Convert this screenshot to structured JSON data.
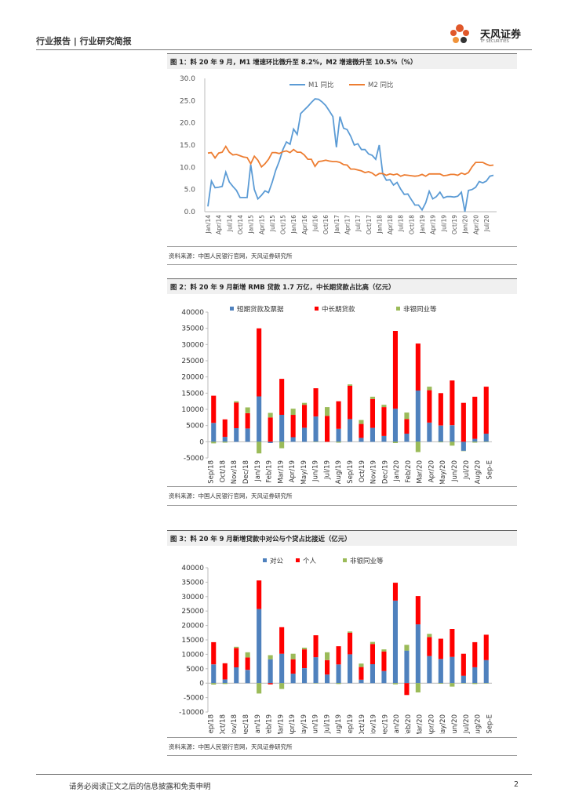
{
  "header": {
    "left_text": "行业报告 | 行业研究简报",
    "brand_name": "天风证券",
    "brand_sub": "TF SECURITIES"
  },
  "figures": [
    {
      "caption": "图 1：料 20 年 9 月，M1 增速环比微升至 8.2%，M2 增速微升至 10.5%（%）",
      "source": "资料来源：中国人民银行官网，天风证券研究所"
    },
    {
      "caption": "图 2：料 20 年 9 月新增 RMB 贷款 1.7 万亿，中长期贷款占比高（亿元）",
      "source": "资料来源：中国人民银行官网，天风证券研究所"
    },
    {
      "caption": "图 3：料 20 年 9 月新增贷款中对公与个贷占比接近（亿元）",
      "source": "资料来源：中国人民银行官网，天风证券研究所"
    }
  ],
  "footer": {
    "note": "请务必阅读正文之后的信息披露和免责申明",
    "page": "2"
  },
  "colors": {
    "blue": "#5B9BD5",
    "orange": "#ED7D31",
    "red": "#FF0000",
    "green": "#9BBB59",
    "barblue": "#4F81BD"
  },
  "chart_data": [
    {
      "type": "line",
      "title": "图 1",
      "ylim": [
        0,
        30
      ],
      "yticks": [
        "0.0",
        "5.0",
        "10.0",
        "15.0",
        "20.0",
        "25.0",
        "30.0"
      ],
      "xticklabels": [
        "Jan/14",
        "Apr/14",
        "Jul/14",
        "Oct/14",
        "Jan/15",
        "Apr/15",
        "Jul/15",
        "Oct/15",
        "Jan/16",
        "Apr/16",
        "Jul/16",
        "Oct/16",
        "Jan/17",
        "Apr/17",
        "Jul/17",
        "Oct/17",
        "Jan/18",
        "Apr/18",
        "Jul/18",
        "Oct/18",
        "Jan/19",
        "Apr/19",
        "Jul/19",
        "Oct/19",
        "Jan/20",
        "Apr/20",
        "Jul/20"
      ],
      "series": [
        {
          "name": "M1 同比",
          "values": [
            1.2,
            6.9,
            5.4,
            5.5,
            5.7,
            8.9,
            6.7,
            5.7,
            4.8,
            3.2,
            3.2,
            3.2,
            10.6,
            5.0,
            2.9,
            3.7,
            4.7,
            4.3,
            6.6,
            9.3,
            11.4,
            14.0,
            15.7,
            15.2,
            18.6,
            17.4,
            22.1,
            22.9,
            23.7,
            24.6,
            25.4,
            25.3,
            24.7,
            23.9,
            22.7,
            21.4,
            14.5,
            21.4,
            18.8,
            18.5,
            17.0,
            15.0,
            15.3,
            14.0,
            14.0,
            13.0,
            12.7,
            11.8,
            15.0,
            8.5,
            7.1,
            7.2,
            6.0,
            6.6,
            5.1,
            3.9,
            4.0,
            2.7,
            1.5,
            1.5,
            0.4,
            2.0,
            4.6,
            2.9,
            3.4,
            4.4,
            3.1,
            3.4,
            3.4,
            3.3,
            3.5,
            4.4,
            0.0,
            4.8,
            5.0,
            5.5,
            6.8,
            6.5,
            6.9,
            8.0,
            8.2
          ]
        },
        {
          "name": "M2 同比",
          "values": [
            13.2,
            13.3,
            12.1,
            13.2,
            13.4,
            14.7,
            13.4,
            12.8,
            12.9,
            12.6,
            12.3,
            12.2,
            10.8,
            12.5,
            11.6,
            10.1,
            10.8,
            11.8,
            13.3,
            13.3,
            13.1,
            13.5,
            13.7,
            13.3,
            14.0,
            13.4,
            13.4,
            12.8,
            11.8,
            11.8,
            10.2,
            11.3,
            11.4,
            11.6,
            11.4,
            11.3,
            11.3,
            11.1,
            10.6,
            10.5,
            9.6,
            9.6,
            9.4,
            9.2,
            8.8,
            9.0,
            8.7,
            8.1,
            8.6,
            8.6,
            8.2,
            8.5,
            8.3,
            8.5,
            8.0,
            8.3,
            8.2,
            8.1,
            8.0,
            8.1,
            8.4,
            8.0,
            8.5,
            8.5,
            8.5,
            8.5,
            8.1,
            8.2,
            8.4,
            8.4,
            8.2,
            8.7,
            8.4,
            8.8,
            10.1,
            11.1,
            11.1,
            11.1,
            10.7,
            10.4,
            10.5
          ]
        }
      ]
    },
    {
      "type": "stacked-bar",
      "title": "图 2",
      "ylim": [
        -5000,
        40000
      ],
      "yticks": [
        "-5000",
        "0",
        "5000",
        "10000",
        "15000",
        "20000",
        "25000",
        "30000",
        "35000",
        "40000"
      ],
      "categories": [
        "Sep/18",
        "Oct/18",
        "Nov/18",
        "Dec/18",
        "Jan/19",
        "Feb/19",
        "Mar/19",
        "Apr/19",
        "May/19",
        "Jun/19",
        "Jul/19",
        "Aug/19",
        "Sep/19",
        "Oct/19",
        "Nov/19",
        "Dec/19",
        "Jan/20",
        "Feb/20",
        "Mar/20",
        "Apr/20",
        "May/20",
        "Jun/20",
        "Jul/20",
        "Aug/20",
        "Sep-E"
      ],
      "xticklabels": [
        "Sep/18",
        "",
        "Oct/18",
        "",
        "Nov/18",
        "",
        "Dec/18",
        "",
        "Jan/19",
        "",
        "Feb/19",
        "",
        "Mar/19",
        "",
        "Apr/19",
        "",
        "May/19",
        "",
        "Jun/19",
        "",
        "Jul/19",
        "",
        "Aug/19",
        "",
        "Sep/19",
        "",
        "Oct/19",
        "",
        "Nov/19",
        "",
        "Dec/19",
        "",
        "Jan/20",
        "",
        "Feb/20",
        "",
        "Mar/20",
        "",
        "Apr/20",
        "",
        "May/20",
        "",
        "Jun/20",
        "",
        "Jul/20",
        "",
        "Aug/20",
        "",
        "Sep-E"
      ],
      "series": [
        {
          "name": "短期贷款及票据",
          "values": [
            5800,
            1500,
            4200,
            4100,
            14000,
            -400,
            8300,
            1400,
            4300,
            7800,
            0,
            4000,
            7000,
            1200,
            4300,
            1800,
            10200,
            2500,
            15800,
            5900,
            5000,
            5100,
            -2800,
            900,
            2500
          ]
        },
        {
          "name": "中长期贷款",
          "values": [
            8400,
            5400,
            7900,
            4700,
            21000,
            7500,
            11100,
            6900,
            7100,
            8700,
            8000,
            8500,
            10300,
            4300,
            8900,
            8900,
            24000,
            4500,
            14500,
            10000,
            10000,
            13800,
            12000,
            13000,
            14500
          ]
        },
        {
          "name": "非银同业等",
          "values": [
            -500,
            -300,
            400,
            1800,
            -3600,
            1400,
            -2000,
            1900,
            600,
            -100,
            2700,
            -300,
            400,
            1200,
            700,
            700,
            -400,
            2000,
            -3200,
            1100,
            -200,
            -1200,
            -100,
            -300,
            -100
          ]
        }
      ]
    },
    {
      "type": "stacked-bar",
      "title": "图 3",
      "ylim": [
        -10000,
        40000
      ],
      "yticks": [
        "-10000",
        "-5000",
        "0",
        "5000",
        "10000",
        "15000",
        "20000",
        "25000",
        "30000",
        "35000",
        "40000"
      ],
      "categories": [
        "Sep/18",
        "Oct/18",
        "Nov/18",
        "Dec/18",
        "Jan/19",
        "Feb/19",
        "Mar/19",
        "Apr/19",
        "May/19",
        "Jun/19",
        "Jul/19",
        "Aug/19",
        "Sep/19",
        "Oct/19",
        "Nov/19",
        "Dec/19",
        "Jan/20",
        "Feb/20",
        "Mar/20",
        "Apr/20",
        "May/20",
        "Jun/20",
        "Jul/20",
        "Aug/20",
        "Sep-E"
      ],
      "xticklabels": [
        "Sep/18",
        "",
        "Oct/18",
        "",
        "Nov/18",
        "",
        "Dec/18",
        "",
        "Jan/19",
        "",
        "Feb/19",
        "",
        "Mar/19",
        "",
        "Apr/19",
        "",
        "May/19",
        "",
        "Jun/19",
        "",
        "Jul/19",
        "",
        "Aug/19",
        "",
        "Sep/19",
        "",
        "Oct/19",
        "",
        "Nov/19",
        "",
        "Dec/19",
        "",
        "Jan/20",
        "",
        "Feb/20",
        "",
        "Mar/20",
        "",
        "Apr/20",
        "",
        "May/20",
        "",
        "Jun/20",
        "",
        "Jul/20",
        "",
        "Aug/20",
        "",
        "Sep-E"
      ],
      "series": [
        {
          "name": "对公",
          "values": [
            6500,
            1300,
            5500,
            4600,
            25700,
            8300,
            10200,
            3300,
            5200,
            9000,
            3000,
            6500,
            10000,
            1200,
            6600,
            4200,
            28600,
            11300,
            20400,
            9400,
            8400,
            9100,
            2600,
            5500,
            8000
          ]
        },
        {
          "name": "个人",
          "values": [
            7700,
            5600,
            6700,
            4300,
            9900,
            -400,
            9200,
            5000,
            6500,
            7600,
            5000,
            6300,
            7500,
            4400,
            7000,
            6800,
            6200,
            -4100,
            9800,
            6600,
            7000,
            9700,
            7600,
            8700,
            8800
          ]
        },
        {
          "name": "非银同业等",
          "values": [
            -500,
            -300,
            400,
            1800,
            -3600,
            1400,
            -2000,
            1900,
            600,
            -100,
            2700,
            -300,
            400,
            1200,
            700,
            700,
            -400,
            2000,
            -3200,
            1100,
            -200,
            -1200,
            -100,
            -300,
            -100
          ]
        }
      ]
    }
  ]
}
